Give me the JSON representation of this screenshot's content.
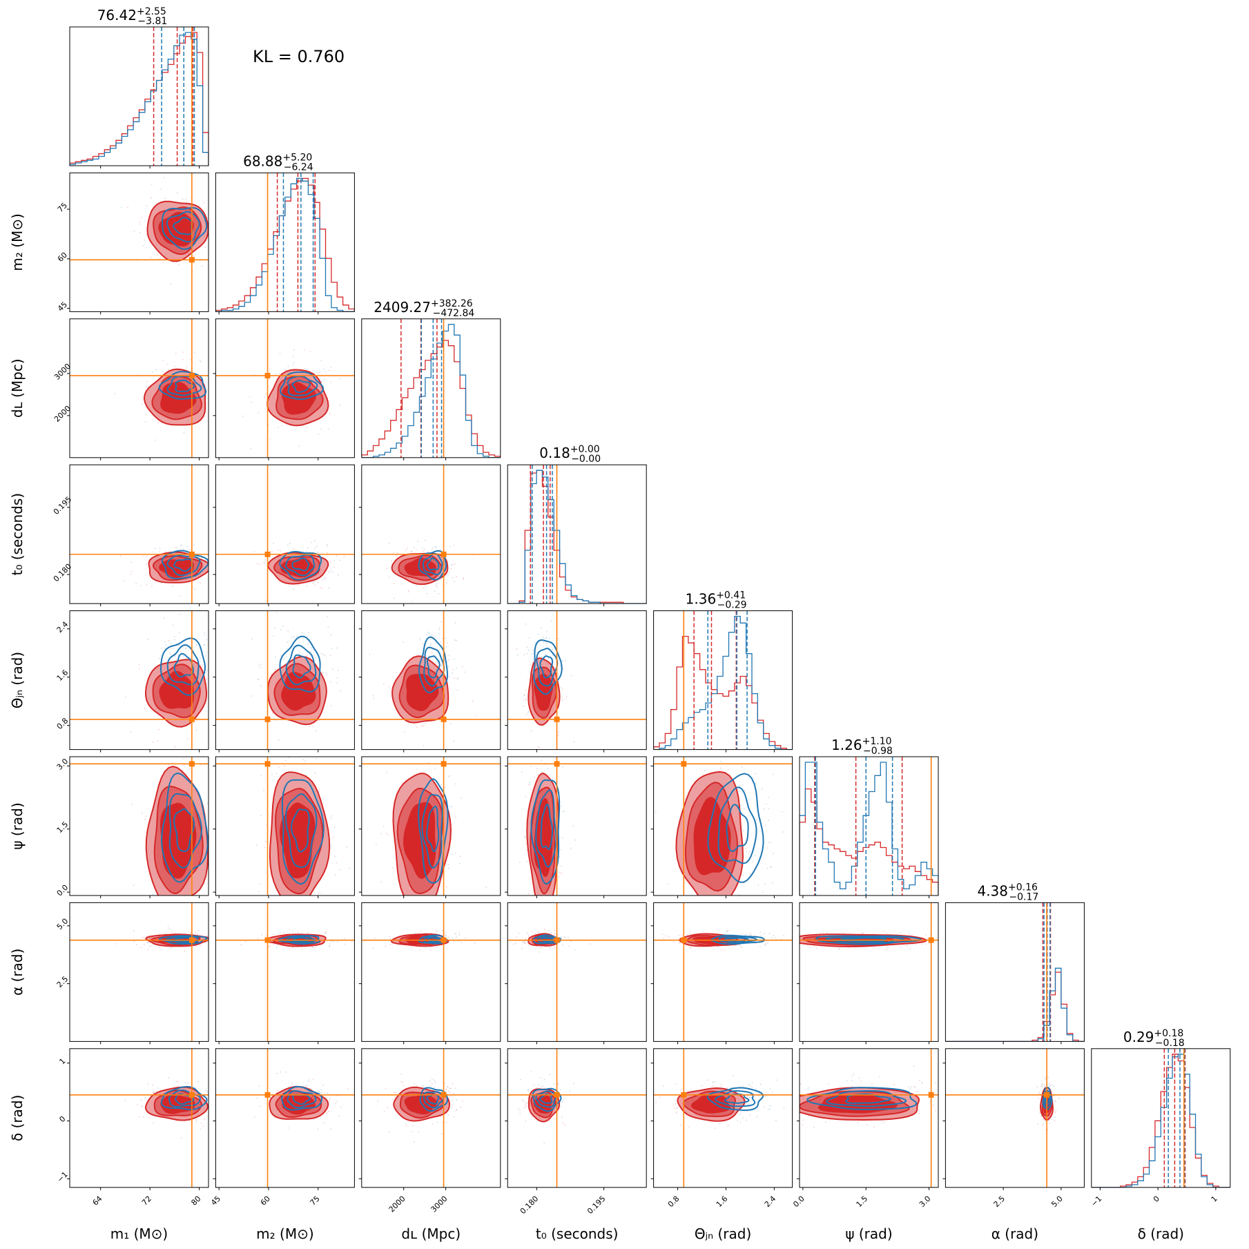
{
  "kl_annotation": "KL = 0.760",
  "colors": {
    "series_red": "#d62728",
    "series_red_light": "#eda0a1",
    "series_red_mid": "#e06466",
    "series_blue": "#1f77b4",
    "truth": "#ff7f0e"
  },
  "chart_data": {
    "type": "corner",
    "series": [
      {
        "color": "#d62728"
      },
      {
        "color": "#1f77b4"
      }
    ],
    "parameters": [
      {
        "key": "m1",
        "label": "m₁ (M⊙)",
        "range": [
          59,
          81.5
        ],
        "ticks": [
          64,
          72,
          80
        ],
        "tick_labels": [
          "64",
          "72",
          "80"
        ],
        "title_main": "76.42",
        "title_plus": "+2.55",
        "title_minus": "−3.81",
        "truth": 78.8,
        "red_quantiles": [
          72.61,
          76.42,
          78.97
        ],
        "blue_quantiles": [
          73.9,
          77.5,
          79.2
        ],
        "red_hist": [
          0.02,
          0.03,
          0.04,
          0.05,
          0.07,
          0.09,
          0.12,
          0.15,
          0.19,
          0.24,
          0.3,
          0.36,
          0.42,
          0.5,
          0.57,
          0.64,
          0.7,
          0.76,
          0.84,
          0.92,
          0.97,
          1.0,
          0.85,
          0.25
        ],
        "blue_hist": [
          0.01,
          0.02,
          0.03,
          0.04,
          0.05,
          0.07,
          0.1,
          0.13,
          0.17,
          0.22,
          0.27,
          0.33,
          0.4,
          0.48,
          0.56,
          0.64,
          0.72,
          0.8,
          0.9,
          0.98,
          1.0,
          0.95,
          0.6,
          0.1
        ]
      },
      {
        "key": "m2",
        "label": "m₂ (M⊙)",
        "range": [
          44,
          86
        ],
        "ticks": [
          45,
          60,
          75
        ],
        "tick_labels": [
          "45",
          "60",
          "75"
        ],
        "title_main": "68.88",
        "title_plus": "+5.20",
        "title_minus": "−6.24",
        "truth": 59.7,
        "red_quantiles": [
          62.64,
          68.88,
          74.08
        ],
        "blue_quantiles": [
          64.5,
          69.8,
          73.5
        ],
        "red_hist": [
          0.01,
          0.02,
          0.03,
          0.05,
          0.08,
          0.12,
          0.18,
          0.26,
          0.36,
          0.47,
          0.6,
          0.72,
          0.83,
          0.92,
          0.98,
          1.0,
          0.95,
          0.82,
          0.62,
          0.4,
          0.22,
          0.11,
          0.05,
          0.02
        ],
        "blue_hist": [
          0.0,
          0.01,
          0.01,
          0.02,
          0.04,
          0.07,
          0.12,
          0.2,
          0.3,
          0.43,
          0.57,
          0.72,
          0.86,
          0.96,
          1.0,
          0.98,
          0.88,
          0.7,
          0.4,
          0.12,
          0.03,
          0.01,
          0.0,
          0.0
        ]
      },
      {
        "key": "dL",
        "label": "dʟ (Mpc)",
        "range": [
          1000,
          4300
        ],
        "ticks": [
          2000,
          3000
        ],
        "tick_labels": [
          "2000",
          "3000"
        ],
        "title_main": "2409.27",
        "title_plus": "+382.26",
        "title_minus": "−472.84",
        "truth": 2950,
        "red_quantiles": [
          1936.43,
          2409.27,
          2791.53
        ],
        "blue_quantiles": [
          2420,
          2700,
          2900
        ],
        "red_hist": [
          0.02,
          0.05,
          0.09,
          0.14,
          0.2,
          0.28,
          0.36,
          0.45,
          0.52,
          0.6,
          0.66,
          0.73,
          0.78,
          0.83,
          0.88,
          0.84,
          0.72,
          0.52,
          0.32,
          0.18,
          0.09,
          0.04,
          0.02,
          0.01
        ],
        "blue_hist": [
          0.0,
          0.0,
          0.01,
          0.02,
          0.04,
          0.07,
          0.11,
          0.16,
          0.24,
          0.34,
          0.46,
          0.6,
          0.74,
          0.86,
          0.95,
          1.0,
          0.92,
          0.62,
          0.28,
          0.09,
          0.03,
          0.01,
          0.0,
          0.0
        ]
      },
      {
        "key": "t0",
        "label": "t₀ (seconds)",
        "range": [
          0.1735,
          0.2045
        ],
        "ticks": [
          0.18,
          0.195
        ],
        "tick_labels": [
          "0.180",
          "0.195"
        ],
        "title_main": "0.18",
        "title_plus": "+0.00",
        "title_minus": "−0.00",
        "truth": 0.1845,
        "red_quantiles": [
          0.1786,
          0.1815,
          0.183
        ],
        "blue_quantiles": [
          0.179,
          0.1822,
          0.1835
        ],
        "red_hist": [
          0.0,
          0.0,
          0.02,
          0.55,
          0.98,
          1.0,
          0.88,
          0.65,
          0.4,
          0.2,
          0.1,
          0.05,
          0.03,
          0.02,
          0.01,
          0.01,
          0.01,
          0.01,
          0.01,
          0.01,
          0.0,
          0.0,
          0.0,
          0.0
        ],
        "blue_hist": [
          0.0,
          0.0,
          0.01,
          0.4,
          0.9,
          1.0,
          0.95,
          0.78,
          0.55,
          0.3,
          0.14,
          0.06,
          0.03,
          0.02,
          0.01,
          0.01,
          0.0,
          0.0,
          0.0,
          0.0,
          0.0,
          0.0,
          0.0,
          0.0
        ]
      },
      {
        "key": "theta",
        "label": "Θⱼₙ (rad)",
        "range": [
          0.4,
          2.7
        ],
        "ticks": [
          0.8,
          1.6,
          2.4
        ],
        "tick_labels": [
          "0.8",
          "1.6",
          "2.4"
        ],
        "title_main": "1.36",
        "title_plus": "+0.41",
        "title_minus": "−0.29",
        "truth": 0.9,
        "red_quantiles": [
          1.07,
          1.36,
          1.77
        ],
        "blue_quantiles": [
          1.3,
          1.78,
          1.95
        ],
        "red_hist": [
          0.02,
          0.05,
          0.12,
          0.3,
          0.62,
          0.85,
          0.8,
          0.72,
          0.6,
          0.5,
          0.45,
          0.42,
          0.4,
          0.44,
          0.5,
          0.55,
          0.48,
          0.35,
          0.22,
          0.12,
          0.06,
          0.03,
          0.01,
          0.0
        ],
        "blue_hist": [
          0.0,
          0.01,
          0.03,
          0.08,
          0.15,
          0.2,
          0.24,
          0.28,
          0.3,
          0.35,
          0.42,
          0.55,
          0.7,
          0.88,
          1.0,
          0.95,
          0.72,
          0.42,
          0.2,
          0.08,
          0.03,
          0.01,
          0.0,
          0.0
        ]
      },
      {
        "key": "psi",
        "label": "ψ (rad)",
        "range": [
          -0.08,
          3.22
        ],
        "ticks": [
          0.0,
          1.5,
          3.0
        ],
        "tick_labels": [
          "0.0",
          "1.5",
          "3.0"
        ],
        "title_main": "1.26",
        "title_plus": "+1.10",
        "title_minus": "−0.98",
        "truth": 3.05,
        "red_quantiles": [
          0.28,
          1.26,
          2.36
        ],
        "blue_quantiles": [
          0.3,
          1.5,
          2.13
        ],
        "red_hist": [
          0.55,
          0.8,
          0.7,
          0.5,
          0.4,
          0.38,
          0.35,
          0.33,
          0.3,
          0.28,
          0.33,
          0.36,
          0.38,
          0.4,
          0.36,
          0.3,
          0.25,
          0.22,
          0.2,
          0.22,
          0.18,
          0.15,
          0.12,
          0.1
        ],
        "blue_hist": [
          0.6,
          1.0,
          1.0,
          0.55,
          0.35,
          0.25,
          0.1,
          0.05,
          0.1,
          0.22,
          0.4,
          0.6,
          0.78,
          0.9,
          1.0,
          0.7,
          0.35,
          0.12,
          0.05,
          0.08,
          0.15,
          0.25,
          0.2,
          0.15
        ]
      },
      {
        "key": "alpha",
        "label": "α (rad)",
        "range": [
          0.0,
          6.0
        ],
        "ticks": [
          2.5,
          5.0
        ],
        "tick_labels": [
          "2.5",
          "5.0"
        ],
        "title_main": "4.38",
        "title_plus": "+0.16",
        "title_minus": "−0.17",
        "truth": 4.38,
        "red_quantiles": [
          4.21,
          4.38,
          4.54
        ],
        "blue_quantiles": [
          4.26,
          4.4,
          4.52
        ],
        "red_hist": [
          0.0,
          0.0,
          0.0,
          0.0,
          0.0,
          0.0,
          0.0,
          0.0,
          0.0,
          0.0,
          0.0,
          0.0,
          0.0,
          0.0,
          0.0,
          0.01,
          0.03,
          0.15,
          0.35,
          0.52,
          0.28,
          0.06,
          0.01,
          0.0
        ],
        "blue_hist": [
          0.0,
          0.0,
          0.0,
          0.0,
          0.0,
          0.0,
          0.0,
          0.0,
          0.0,
          0.0,
          0.0,
          0.0,
          0.0,
          0.0,
          0.0,
          0.0,
          0.02,
          0.12,
          0.38,
          0.55,
          0.25,
          0.05,
          0.0,
          0.0
        ]
      },
      {
        "key": "delta",
        "label": "δ (rad)",
        "range": [
          -1.15,
          1.25
        ],
        "ticks": [
          -1,
          0,
          1
        ],
        "tick_labels": [
          "−1",
          "0",
          "1"
        ],
        "title_main": "0.29",
        "title_plus": "+0.18",
        "title_minus": "−0.18",
        "truth": 0.45,
        "red_quantiles": [
          0.11,
          0.29,
          0.47
        ],
        "blue_quantiles": [
          0.18,
          0.38,
          0.46
        ],
        "red_hist": [
          0.0,
          0.0,
          0.0,
          0.0,
          0.0,
          0.01,
          0.02,
          0.04,
          0.08,
          0.15,
          0.3,
          0.5,
          0.72,
          0.9,
          1.0,
          0.95,
          0.75,
          0.45,
          0.22,
          0.09,
          0.03,
          0.01,
          0.0,
          0.0
        ],
        "blue_hist": [
          0.0,
          0.0,
          0.0,
          0.0,
          0.0,
          0.0,
          0.01,
          0.02,
          0.05,
          0.1,
          0.2,
          0.38,
          0.6,
          0.82,
          0.98,
          1.0,
          0.85,
          0.55,
          0.25,
          0.08,
          0.02,
          0.0,
          0.0,
          0.0
        ]
      }
    ]
  }
}
